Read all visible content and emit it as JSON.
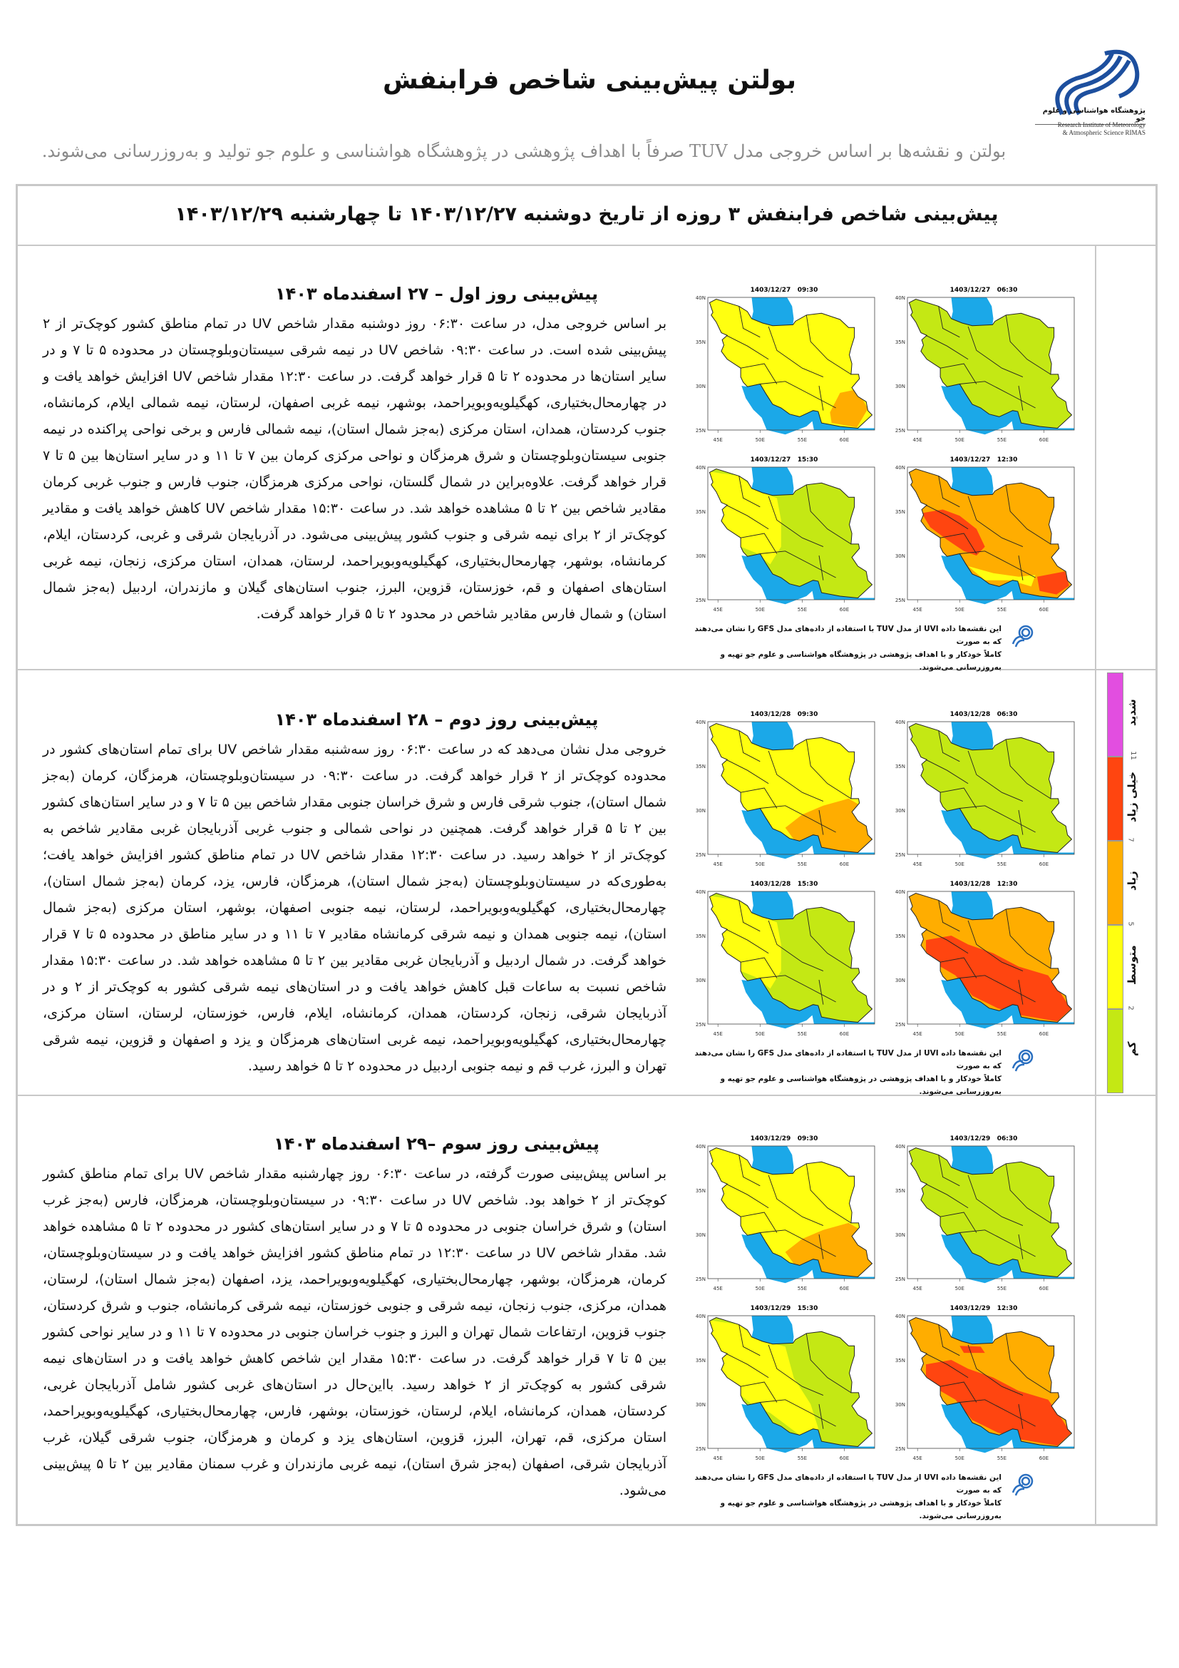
{
  "header": {
    "title": "بولتن پیش‌بینی شاخص فرابنفش",
    "subtitle": "بولتن و نقشه‌ها بر اساس خروجی مدل TUV صرفاً با اهداف پژوهشی در پژوهشگاه هواشناسی و علوم جو تولید و به‌روزرسانی می‌شوند.",
    "logo": {
      "name_fa": "پژوهشگاه هواشناسی و علوم جو",
      "name_en_1": "Research Institute of Meteorology",
      "name_en_2": "& Atmospheric Science RIMAS"
    }
  },
  "period_title": "پیش‌بینی شاخص فرابنفش ۳ روزه از تاریخ دوشنبه ۱۴۰۳/۱۲/۲۷ تا چهارشنبه ۱۴۰۳/۱۲/۲۹",
  "colors": {
    "low": "#c4e814",
    "moderate": "#ffff10",
    "high": "#ffad00",
    "very_high": "#ff4510",
    "extreme": "#e24ee0",
    "sea": "#1ba8e8"
  },
  "legend": {
    "categories": [
      {
        "key": "low",
        "label": "کم"
      },
      {
        "key": "moderate",
        "label": "متوسط"
      },
      {
        "key": "high",
        "label": "زیاد"
      },
      {
        "key": "very_high",
        "label": "خیلی زیاد"
      },
      {
        "key": "extreme",
        "label": "شدید"
      }
    ],
    "thresholds": [
      "2",
      "5",
      "7",
      "11"
    ]
  },
  "map_axes": {
    "lat_ticks": [
      "40N",
      "35N",
      "30N",
      "25N"
    ],
    "lon_ticks": [
      "45E",
      "50E",
      "55E",
      "60E"
    ]
  },
  "map_caption": {
    "line1": "این نقشه‌ها داده UVI از مدل TUV با استفاده از داده‌های مدل GFS را نشان می‌دهند که به صورت",
    "line2": "کاملاً خودکار و با اهداف پژوهشی در پژوهشگاه هواشناسی و علوم جو تهیه و به‌روزرسانی می‌شوند."
  },
  "days": [
    {
      "title": "پیش‌بینی روز اول – ۲۷ اسفندماه ۱۴۰۳",
      "text": "بر اساس خروجی مدل، در ساعت ۰۶:۳۰ روز دوشنبه مقدار شاخص UV در تمام مناطق کشور کوچک‌تر از ۲ پیش‌بینی شده است. در ساعت ۰۹:۳۰ شاخص UV در نیمه شرقی سیستان‌وبلوچستان در محدوده ۵ تا ۷ و در سایر استان‌ها در محدوده ۲ تا ۵ قرار خواهد گرفت. در ساعت ۱۲:۳۰ مقدار شاخص UV افزایش خواهد یافت و در چهارمحال‌بختیاری، کهگیلویه‌وبویراحمد، بوشهر، نیمه غربی اصفهان، لرستان، نیمه شمالی ایلام، کرمانشاه، جنوب کردستان، همدان، استان مرکزی (به‌جز شمال استان)، نیمه شمالی فارس و برخی نواحی پراکنده در نیمه جنوبی سیستان‌وبلوچستان و شرق هرمزگان و نواحی مرکزی کرمان بین ۷ تا ۱۱ و در سایر استان‌ها بین ۵ تا ۷ قرار خواهد گرفت. علاوه‌براین در شمال گلستان، نواحی مرکزی هرمزگان، جنوب فارس و جنوب غربی کرمان مقادیر شاخص بین ۲ تا ۵ مشاهده خواهد شد. در ساعت ۱۵:۳۰ مقدار شاخص UV کاهش خواهد یافت و مقادیر کوچک‌تر از ۲ برای نیمه شرقی و جنوب کشور پیش‌بینی می‌شود. در آذربایجان شرقی و غربی، کردستان، ایلام، کرمانشاه، بوشهر، چهارمحال‌بختیاری، کهگیلویه‌وبویراحمد، لرستان، همدان، استان مرکزی، زنجان، نیمه غربی استان‌های اصفهان و قم، خوزستان، قزوین، البرز، جنوب استان‌های گیلان و مازندران، اردبیل (به‌جز شمال استان) و شمال فارس مقادیر شاخص در محدود ۲ تا ۵ قرار خواهد گرفت.",
      "maps": [
        {
          "label": "1403/12/27   09:30",
          "base": "moderate",
          "patches": [
            "high-se-small"
          ]
        },
        {
          "label": "1403/12/27   06:30",
          "base": "low",
          "patches": []
        },
        {
          "label": "1403/12/27   15:30",
          "base": "low",
          "patches": [
            "moderate-west"
          ]
        },
        {
          "label": "1403/12/27   12:30",
          "base": "high",
          "patches": [
            "very_high-zagros",
            "moderate-south-coast",
            "very_high-se-spots"
          ]
        }
      ]
    },
    {
      "title": "پیش‌بینی روز دوم – ۲۸ اسفندماه ۱۴۰۳",
      "text": "خروجی مدل نشان می‌دهد که در ساعت ۰۶:۳۰ روز سه‌شنبه مقدار شاخص UV برای تمام استان‌های کشور در محدوده کوچک‌تر از ۲ قرار خواهد گرفت. در ساعت ۰۹:۳۰ در سیستان‌وبلوچستان، هرمزگان، کرمان (به‌جز شمال استان)، جنوب شرقی فارس و شرق خراسان جنوبی مقدار شاخص بین ۵ تا ۷ و در سایر استان‌های کشور بین ۲ تا ۵ قرار خواهد گرفت. همچنین در نواحی شمالی و جنوب غربی آذربایجان غربی مقادیر شاخص به کوچک‌تر از ۲ خواهد رسید. در ساعت ۱۲:۳۰ مقدار شاخص UV در تمام مناطق کشور افزایش خواهد یافت؛ به‌طوری‌که در سیستان‌وبلوچستان (به‌جز شمال استان)، هرمزگان، فارس، یزد، کرمان (به‌جز شمال استان)، چهارمحال‌بختیاری، کهگیلویه‌وبویراحمد، لرستان، نیمه جنوبی اصفهان، بوشهر، استان مرکزی (به‌جز شمال استان)، نیمه جنوبی همدان و نیمه شرقی کرمانشاه مقادیر ۷ تا ۱۱ و در سایر مناطق در محدوده ۵ تا ۷ قرار خواهد گرفت. در شمال اردبیل و آذربایجان غربی مقادیر بین ۲ تا ۵ مشاهده خواهد شد. در ساعت ۱۵:۳۰ مقدار شاخص نسبت به ساعات قبل کاهش خواهد یافت و در استان‌های نیمه شرقی کشور به کوچک‌تر از ۲ و در آذربایجان شرقی، زنجان، کردستان، همدان، کرمانشاه، ایلام، فارس، خوزستان، لرستان، استان مرکزی، چهارمحال‌بختیاری، کهگیلویه‌وبویراحمد، نیمه غربی استان‌های هرمزگان و یزد و اصفهان و قزوین، نیمه شرقی تهران و البرز، غرب قم و نیمه جنوبی اردبیل در محدوده ۲ تا ۵ خواهد رسید.",
      "maps": [
        {
          "label": "1403/12/28   09:30",
          "base": "moderate",
          "patches": [
            "high-se-large"
          ]
        },
        {
          "label": "1403/12/28   06:30",
          "base": "low",
          "patches": []
        },
        {
          "label": "1403/12/28   15:30",
          "base": "low",
          "patches": [
            "moderate-west"
          ]
        },
        {
          "label": "1403/12/28   12:30",
          "base": "high",
          "patches": [
            "very_high-south-large"
          ]
        }
      ]
    },
    {
      "title": "پیش‌بینی روز سوم –۲۹ اسفندماه ۱۴۰۳",
      "text": "بر اساس پیش‌بینی صورت گرفته، در ساعت ۰۶:۳۰ روز چهارشنبه مقدار شاخص UV برای تمام مناطق کشور کوچک‌تر از ۲ خواهد بود. شاخص UV در ساعت ۰۹:۳۰ در سیستان‌وبلوچستان، هرمزگان، فارس (به‌جز غرب استان) و شرق خراسان جنوبی در محدوده ۵ تا ۷ و در سایر استان‌های کشور در محدوده ۲ تا ۵ مشاهده خواهد شد. مقدار شاخص UV در ساعت ۱۲:۳۰ در تمام مناطق کشور افزایش خواهد یافت و در سیستان‌وبلوچستان، کرمان، هرمزگان، بوشهر، چهارمحال‌بختیاری، کهگیلویه‌وبویراحمد، یزد، اصفهان (به‌جز شمال استان)، لرستان، همدان، مرکزی، جنوب زنجان، نیمه شرقی و جنوبی خوزستان، نیمه شرقی کرمانشاه، جنوب و شرق کردستان، جنوب قزوین، ارتفاعات شمال تهران و البرز و جنوب خراسان جنوبی در محدوده ۷ تا ۱۱ و در سایر نواحی کشور بین ۵ تا ۷ قرار خواهد گرفت. در ساعت ۱۵:۳۰ مقدار این شاخص کاهش خواهد یافت و در استان‌های نیمه شرقی کشور به کوچک‌تر از ۲ خواهد رسید. بااین‌حال در استان‌های غربی کشور شامل آذربایجان غربی، کردستان، همدان، کرمانشاه، ایلام، لرستان، خوزستان، بوشهر، فارس، چهارمحال‌بختیاری، کهگیلویه‌وبویراحمد، استان مرکزی، قم، تهران، البرز، قزوین، استان‌های یزد و کرمان و هرمزگان، جنوب شرقی گیلان، غرب آذربایجان شرقی، اصفهان (به‌جز شرق استان)، نیمه غربی مازندران و غرب سمنان مقادیر بین ۲ تا ۵ پیش‌بینی می‌شود.",
      "maps": [
        {
          "label": "1403/12/29   09:30",
          "base": "moderate",
          "patches": [
            "high-se-large"
          ]
        },
        {
          "label": "1403/12/29   06:30",
          "base": "low",
          "patches": []
        },
        {
          "label": "1403/12/29   15:30",
          "base": "low",
          "patches": [
            "moderate-west-large"
          ]
        },
        {
          "label": "1403/12/29   12:30",
          "base": "high",
          "patches": [
            "very_high-south-large",
            "very_high-north"
          ]
        }
      ]
    }
  ]
}
